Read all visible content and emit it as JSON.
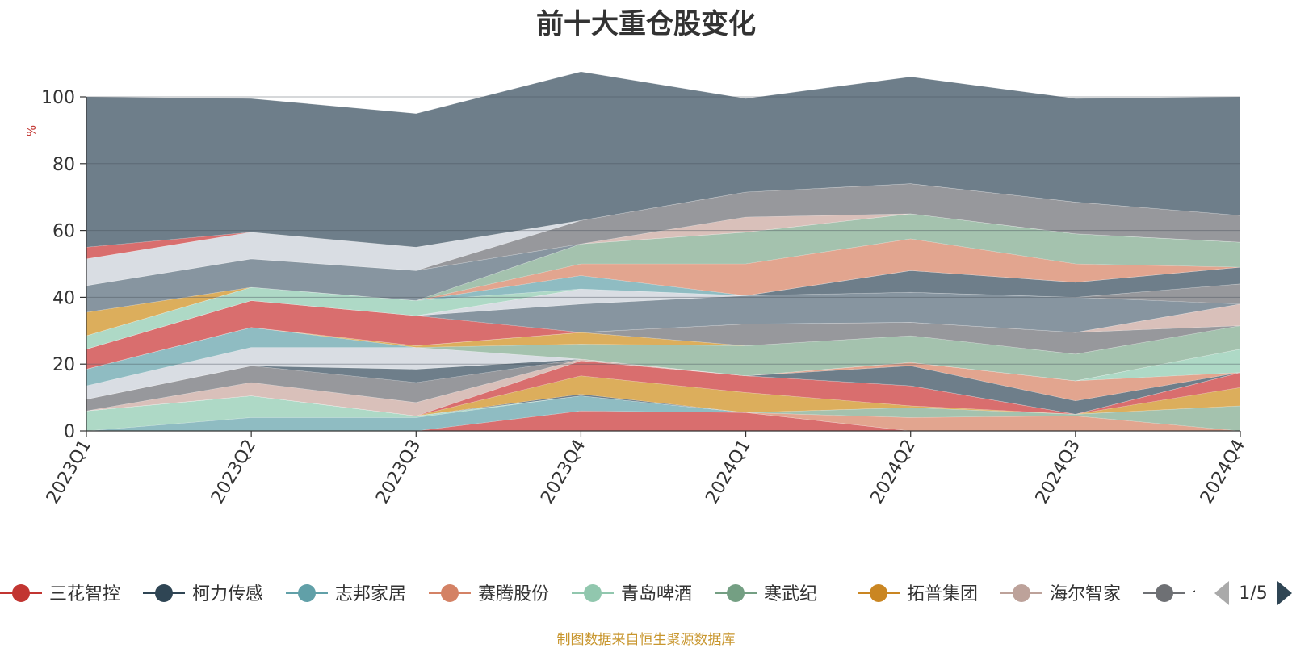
{
  "chart_data": {
    "type": "area",
    "title": "前十大重仓股变化",
    "ylabel": "%",
    "xlabel": "",
    "ylim": [
      0,
      100
    ],
    "yticks": [
      0,
      20,
      40,
      60,
      80,
      100
    ],
    "categories": [
      "2023Q1",
      "2023Q2",
      "2023Q3",
      "2023Q4",
      "2024Q1",
      "2024Q2",
      "2024Q3",
      "2024Q4"
    ],
    "stacked": true,
    "bands": [
      {
        "color": "#d96e6e",
        "values": [
          0,
          0,
          0,
          6,
          5.5,
          0,
          0,
          0
        ]
      },
      {
        "color": "#8fbcc2",
        "values": [
          0,
          4,
          4,
          4.5,
          0,
          0,
          0,
          0
        ]
      },
      {
        "color": "#aed9c6",
        "values": [
          6,
          6.5,
          0.5,
          0,
          0,
          0,
          0,
          0
        ]
      },
      {
        "color": "#e2a58f",
        "values": [
          0,
          0,
          0,
          0,
          0,
          4,
          4.5,
          0
        ]
      },
      {
        "color": "#a4c2ae",
        "values": [
          0,
          0,
          0,
          0,
          0,
          3,
          0.5,
          7.5
        ]
      },
      {
        "color": "#6e7e8a",
        "values": [
          0,
          0,
          0,
          0.5,
          0,
          0,
          0,
          0
        ]
      },
      {
        "color": "#dcae5c",
        "values": [
          0,
          0,
          0,
          5.5,
          6,
          0.5,
          0,
          5.5
        ]
      },
      {
        "color": "#d96e6e",
        "values": [
          0,
          0,
          0,
          4.5,
          5,
          6,
          0,
          4.5
        ]
      },
      {
        "color": "#d9c0ba",
        "values": [
          0,
          4,
          4,
          0.5,
          0,
          0,
          0,
          0
        ]
      },
      {
        "color": "#97989c",
        "values": [
          3.5,
          5,
          6,
          0,
          0,
          0,
          0,
          0
        ]
      },
      {
        "color": "#6e7e8a",
        "values": [
          0,
          0,
          4,
          0,
          0,
          6,
          4,
          0
        ]
      },
      {
        "color": "#e2a58f",
        "values": [
          0,
          0,
          0,
          0,
          0,
          1,
          6,
          0
        ]
      },
      {
        "color": "#aed9c6",
        "values": [
          0,
          0,
          0,
          0,
          0,
          0,
          0,
          7
        ]
      },
      {
        "color": "#d9dde3",
        "values": [
          4,
          5.5,
          6.5,
          0,
          0,
          0,
          0,
          0
        ]
      },
      {
        "color": "#8fbcc2",
        "values": [
          5,
          6,
          0,
          0,
          0,
          0,
          0,
          0
        ]
      },
      {
        "color": "#a4c2ae",
        "values": [
          0,
          0,
          0,
          4.5,
          9,
          8,
          8,
          7
        ]
      },
      {
        "color": "#dcae5c",
        "values": [
          0,
          0,
          0.5,
          3.5,
          0,
          0,
          0,
          0
        ]
      },
      {
        "color": "#97989c",
        "values": [
          0,
          0,
          0,
          0,
          6.5,
          4,
          6.5,
          0
        ]
      },
      {
        "color": "#d9c0ba",
        "values": [
          0,
          0,
          0,
          0,
          0,
          0,
          0,
          6.5
        ]
      },
      {
        "color": "#d96e6e",
        "values": [
          6,
          8,
          9,
          0,
          0,
          0,
          0,
          0
        ]
      },
      {
        "color": "#8795a0",
        "values": [
          0,
          0,
          0,
          8.5,
          8.5,
          9,
          10.5,
          0
        ]
      },
      {
        "color": "#97989c",
        "values": [
          0,
          0,
          0,
          0,
          0,
          0,
          0,
          6
        ]
      },
      {
        "color": "#d9dde3",
        "values": [
          0,
          0,
          0,
          4.5,
          0,
          0,
          0,
          0
        ]
      },
      {
        "color": "#6e7e8a",
        "values": [
          0,
          0,
          0,
          0,
          0,
          6.5,
          4.5,
          5
        ]
      },
      {
        "color": "#aed9c6",
        "values": [
          4,
          4,
          4.5,
          0,
          0,
          0,
          0,
          0
        ]
      },
      {
        "color": "#8fbcc2",
        "values": [
          0,
          0,
          0,
          4,
          0,
          0,
          0,
          0
        ]
      },
      {
        "color": "#e2a58f",
        "values": [
          0,
          0,
          0,
          3.5,
          9.5,
          9.5,
          5.5,
          0
        ]
      },
      {
        "color": "#a4c2ae",
        "values": [
          0,
          0,
          0,
          6,
          9.5,
          7.5,
          9,
          7.5
        ]
      },
      {
        "color": "#dcae5c",
        "values": [
          7,
          0,
          0,
          0,
          0,
          0,
          0,
          0
        ]
      },
      {
        "color": "#8795a0",
        "values": [
          8,
          8.5,
          9,
          0,
          0,
          0,
          0,
          0
        ]
      },
      {
        "color": "#d9c0ba",
        "values": [
          0,
          0,
          0,
          0,
          4.5,
          0,
          0,
          0
        ]
      },
      {
        "color": "#97989c",
        "values": [
          0,
          0,
          0,
          7,
          7.5,
          9,
          9.5,
          8
        ]
      },
      {
        "color": "#d9dde3",
        "values": [
          8,
          8,
          7,
          0,
          0,
          0,
          0,
          0
        ]
      },
      {
        "color": "#d96e6e",
        "values": [
          3.5,
          0,
          0,
          0,
          0,
          0,
          0,
          0
        ]
      },
      {
        "color": "#6e7e8a",
        "values": [
          45,
          40,
          40,
          44.5,
          28,
          32,
          31,
          35.5
        ]
      }
    ],
    "legend": [
      {
        "name": "三花智控",
        "color": "#c23531"
      },
      {
        "name": "柯力传感",
        "color": "#2f4554"
      },
      {
        "name": "志邦家居",
        "color": "#61a0a8"
      },
      {
        "name": "赛腾股份",
        "color": "#d48265"
      },
      {
        "name": "青岛啤酒",
        "color": "#91c7ae"
      },
      {
        "name": "寒武纪",
        "color": "#749f83"
      },
      {
        "name": "拓普集团",
        "color": "#ca8622"
      },
      {
        "name": "海尔智家",
        "color": "#bda29a"
      },
      {
        "name": "今世缘",
        "color": "#6e7074"
      }
    ],
    "legend_page": "1/5",
    "legend_position": "bottom"
  },
  "footer": {
    "source": "制图数据来自恒生聚源数据库"
  }
}
